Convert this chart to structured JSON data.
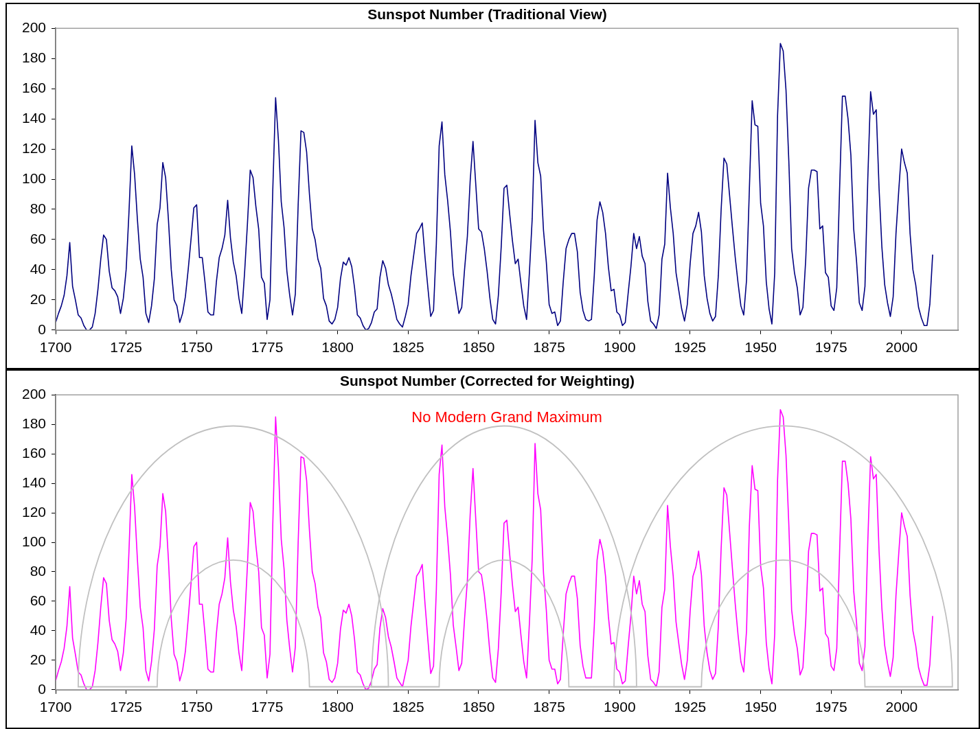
{
  "chart_data": [
    {
      "type": "line",
      "title": "Sunspot Number (Traditional View)",
      "color": "#000080",
      "xlim": [
        1700,
        2020
      ],
      "xticks": [
        1700,
        1725,
        1750,
        1775,
        1800,
        1825,
        1850,
        1875,
        1900,
        1925,
        1950,
        1975,
        2000
      ],
      "ylim": [
        0,
        200
      ],
      "yticks": [
        0,
        20,
        40,
        60,
        80,
        100,
        120,
        140,
        160,
        180,
        200
      ],
      "x": [
        1700,
        1701,
        1702,
        1703,
        1704,
        1705,
        1706,
        1707,
        1708,
        1709,
        1710,
        1711,
        1712,
        1713,
        1714,
        1715,
        1716,
        1717,
        1718,
        1719,
        1720,
        1721,
        1722,
        1723,
        1724,
        1725,
        1726,
        1727,
        1728,
        1729,
        1730,
        1731,
        1732,
        1733,
        1734,
        1735,
        1736,
        1737,
        1738,
        1739,
        1740,
        1741,
        1742,
        1743,
        1744,
        1745,
        1746,
        1747,
        1748,
        1749,
        1750,
        1751,
        1752,
        1753,
        1754,
        1755,
        1756,
        1757,
        1758,
        1759,
        1760,
        1761,
        1762,
        1763,
        1764,
        1765,
        1766,
        1767,
        1768,
        1769,
        1770,
        1771,
        1772,
        1773,
        1774,
        1775,
        1776,
        1777,
        1778,
        1779,
        1780,
        1781,
        1782,
        1783,
        1784,
        1785,
        1786,
        1787,
        1788,
        1789,
        1790,
        1791,
        1792,
        1793,
        1794,
        1795,
        1796,
        1797,
        1798,
        1799,
        1800,
        1801,
        1802,
        1803,
        1804,
        1805,
        1806,
        1807,
        1808,
        1809,
        1810,
        1811,
        1812,
        1813,
        1814,
        1815,
        1816,
        1817,
        1818,
        1819,
        1820,
        1821,
        1822,
        1823,
        1824,
        1825,
        1826,
        1827,
        1828,
        1829,
        1830,
        1831,
        1832,
        1833,
        1834,
        1835,
        1836,
        1837,
        1838,
        1839,
        1840,
        1841,
        1842,
        1843,
        1844,
        1845,
        1846,
        1847,
        1848,
        1849,
        1850,
        1851,
        1852,
        1853,
        1854,
        1855,
        1856,
        1857,
        1858,
        1859,
        1860,
        1861,
        1862,
        1863,
        1864,
        1865,
        1866,
        1867,
        1868,
        1869,
        1870,
        1871,
        1872,
        1873,
        1874,
        1875,
        1876,
        1877,
        1878,
        1879,
        1880,
        1881,
        1882,
        1883,
        1884,
        1885,
        1886,
        1887,
        1888,
        1889,
        1890,
        1891,
        1892,
        1893,
        1894,
        1895,
        1896,
        1897,
        1898,
        1899,
        1900,
        1901,
        1902,
        1903,
        1904,
        1905,
        1906,
        1907,
        1908,
        1909,
        1910,
        1911,
        1912,
        1913,
        1914,
        1915,
        1916,
        1917,
        1918,
        1919,
        1920,
        1921,
        1922,
        1923,
        1924,
        1925,
        1926,
        1927,
        1928,
        1929,
        1930,
        1931,
        1932,
        1933,
        1934,
        1935,
        1936,
        1937,
        1938,
        1939,
        1940,
        1941,
        1942,
        1943,
        1944,
        1945,
        1946,
        1947,
        1948,
        1949,
        1950,
        1951,
        1952,
        1953,
        1954,
        1955,
        1956,
        1957,
        1958,
        1959,
        1960,
        1961,
        1962,
        1963,
        1964,
        1965,
        1966,
        1967,
        1968,
        1969,
        1970,
        1971,
        1972,
        1973,
        1974,
        1975,
        1976,
        1977,
        1978,
        1979,
        1980,
        1981,
        1982,
        1983,
        1984,
        1985,
        1986,
        1987,
        1988,
        1989,
        1990,
        1991,
        1992,
        1993,
        1994,
        1995,
        1996,
        1997,
        1998,
        1999,
        2000,
        2001,
        2002,
        2003,
        2004,
        2005,
        2006,
        2007,
        2008,
        2009,
        2010,
        2011
      ],
      "values": [
        5,
        11,
        16,
        23,
        36,
        58,
        29,
        20,
        10,
        8,
        3,
        0,
        0,
        2,
        11,
        27,
        47,
        63,
        60,
        39,
        28,
        26,
        22,
        11,
        21,
        40,
        78,
        122,
        103,
        73,
        47,
        35,
        11,
        5,
        16,
        34,
        70,
        81,
        111,
        101,
        73,
        40,
        20,
        16,
        5,
        11,
        22,
        40,
        60,
        81,
        83,
        48,
        48,
        31,
        12,
        10,
        10,
        32,
        48,
        54,
        63,
        86,
        61,
        45,
        36,
        21,
        11,
        38,
        70,
        106,
        101,
        82,
        67,
        35,
        31,
        7,
        20,
        93,
        154,
        126,
        85,
        68,
        39,
        23,
        10,
        24,
        83,
        132,
        131,
        118,
        90,
        67,
        60,
        47,
        41,
        21,
        16,
        6,
        4,
        7,
        15,
        34,
        45,
        43,
        48,
        42,
        28,
        10,
        8,
        3,
        0,
        1,
        5,
        12,
        14,
        35,
        46,
        41,
        30,
        24,
        16,
        7,
        4,
        2,
        9,
        17,
        36,
        50,
        64,
        67,
        71,
        48,
        28,
        9,
        13,
        57,
        122,
        138,
        103,
        86,
        65,
        37,
        24,
        11,
        15,
        40,
        62,
        99,
        125,
        96,
        67,
        65,
        54,
        39,
        21,
        7,
        4,
        23,
        55,
        94,
        96,
        77,
        59,
        44,
        47,
        31,
        16,
        7,
        38,
        74,
        139,
        111,
        102,
        66,
        45,
        17,
        11,
        12,
        3,
        6,
        32,
        54,
        60,
        64,
        64,
        52,
        25,
        13,
        7,
        6,
        7,
        36,
        73,
        85,
        78,
        64,
        42,
        26,
        27,
        12,
        10,
        3,
        5,
        24,
        42,
        64,
        54,
        62,
        49,
        44,
        19,
        6,
        4,
        1,
        10,
        47,
        57,
        104,
        81,
        64,
        38,
        26,
        14,
        6,
        17,
        44,
        64,
        69,
        78,
        65,
        36,
        21,
        11,
        6,
        9,
        36,
        80,
        114,
        110,
        89,
        68,
        48,
        31,
        16,
        10,
        33,
        93,
        152,
        136,
        135,
        84,
        69,
        32,
        14,
        4,
        38,
        142,
        190,
        185,
        159,
        112,
        54,
        38,
        28,
        10,
        15,
        47,
        94,
        106,
        106,
        105,
        67,
        69,
        38,
        35,
        16,
        13,
        28,
        93,
        155,
        155,
        140,
        116,
        67,
        46,
        18,
        13,
        29,
        100,
        158,
        143,
        146,
        94,
        55,
        30,
        18,
        9,
        22,
        64,
        93,
        120,
        111,
        104,
        64,
        40,
        30,
        15,
        8,
        3,
        3,
        17,
        50
      ]
    },
    {
      "type": "line",
      "title": "Sunspot Number (Corrected for Weighting)",
      "color": "#ff00ff",
      "annotations": [
        "No Modern Grand Maximum"
      ],
      "xlim": [
        1700,
        2020
      ],
      "xticks": [
        1700,
        1725,
        1750,
        1775,
        1800,
        1825,
        1850,
        1875,
        1900,
        1925,
        1950,
        1975,
        2000
      ],
      "ylim": [
        0,
        200
      ],
      "yticks": [
        0,
        20,
        40,
        60,
        80,
        100,
        120,
        140,
        160,
        180,
        200
      ],
      "x": [
        1700,
        1701,
        1702,
        1703,
        1704,
        1705,
        1706,
        1707,
        1708,
        1709,
        1710,
        1711,
        1712,
        1713,
        1714,
        1715,
        1716,
        1717,
        1718,
        1719,
        1720,
        1721,
        1722,
        1723,
        1724,
        1725,
        1726,
        1727,
        1728,
        1729,
        1730,
        1731,
        1732,
        1733,
        1734,
        1735,
        1736,
        1737,
        1738,
        1739,
        1740,
        1741,
        1742,
        1743,
        1744,
        1745,
        1746,
        1747,
        1748,
        1749,
        1750,
        1751,
        1752,
        1753,
        1754,
        1755,
        1756,
        1757,
        1758,
        1759,
        1760,
        1761,
        1762,
        1763,
        1764,
        1765,
        1766,
        1767,
        1768,
        1769,
        1770,
        1771,
        1772,
        1773,
        1774,
        1775,
        1776,
        1777,
        1778,
        1779,
        1780,
        1781,
        1782,
        1783,
        1784,
        1785,
        1786,
        1787,
        1788,
        1789,
        1790,
        1791,
        1792,
        1793,
        1794,
        1795,
        1796,
        1797,
        1798,
        1799,
        1800,
        1801,
        1802,
        1803,
        1804,
        1805,
        1806,
        1807,
        1808,
        1809,
        1810,
        1811,
        1812,
        1813,
        1814,
        1815,
        1816,
        1817,
        1818,
        1819,
        1820,
        1821,
        1822,
        1823,
        1824,
        1825,
        1826,
        1827,
        1828,
        1829,
        1830,
        1831,
        1832,
        1833,
        1834,
        1835,
        1836,
        1837,
        1838,
        1839,
        1840,
        1841,
        1842,
        1843,
        1844,
        1845,
        1846,
        1847,
        1848,
        1849,
        1850,
        1851,
        1852,
        1853,
        1854,
        1855,
        1856,
        1857,
        1858,
        1859,
        1860,
        1861,
        1862,
        1863,
        1864,
        1865,
        1866,
        1867,
        1868,
        1869,
        1870,
        1871,
        1872,
        1873,
        1874,
        1875,
        1876,
        1877,
        1878,
        1879,
        1880,
        1881,
        1882,
        1883,
        1884,
        1885,
        1886,
        1887,
        1888,
        1889,
        1890,
        1891,
        1892,
        1893,
        1894,
        1895,
        1896,
        1897,
        1898,
        1899,
        1900,
        1901,
        1902,
        1903,
        1904,
        1905,
        1906,
        1907,
        1908,
        1909,
        1910,
        1911,
        1912,
        1913,
        1914,
        1915,
        1916,
        1917,
        1918,
        1919,
        1920,
        1921,
        1922,
        1923,
        1924,
        1925,
        1926,
        1927,
        1928,
        1929,
        1930,
        1931,
        1932,
        1933,
        1934,
        1935,
        1936,
        1937,
        1938,
        1939,
        1940,
        1941,
        1942,
        1943,
        1944,
        1945,
        1946,
        1947,
        1948,
        1949,
        1950,
        1951,
        1952,
        1953,
        1954,
        1955,
        1956,
        1957,
        1958,
        1959,
        1960,
        1961,
        1962,
        1963,
        1964,
        1965,
        1966,
        1967,
        1968,
        1969,
        1970,
        1971,
        1972,
        1973,
        1974,
        1975,
        1976,
        1977,
        1978,
        1979,
        1980,
        1981,
        1982,
        1983,
        1984,
        1985,
        1986,
        1987,
        1988,
        1989,
        1990,
        1991,
        1992,
        1993,
        1994,
        1995,
        1996,
        1997,
        1998,
        1999,
        2000,
        2001,
        2002,
        2003,
        2004,
        2005,
        2006,
        2007,
        2008,
        2009,
        2010,
        2011
      ],
      "values": [
        6,
        13,
        19,
        28,
        43,
        70,
        35,
        24,
        12,
        10,
        4,
        0,
        0,
        2,
        13,
        32,
        56,
        76,
        72,
        47,
        34,
        31,
        26,
        13,
        25,
        48,
        94,
        146,
        124,
        88,
        56,
        42,
        13,
        6,
        19,
        41,
        84,
        97,
        133,
        121,
        88,
        48,
        24,
        19,
        6,
        13,
        26,
        48,
        72,
        97,
        100,
        58,
        58,
        37,
        14,
        12,
        12,
        38,
        58,
        65,
        76,
        103,
        73,
        54,
        43,
        25,
        13,
        46,
        84,
        127,
        121,
        98,
        80,
        42,
        37,
        8,
        24,
        112,
        185,
        151,
        102,
        82,
        47,
        28,
        12,
        29,
        100,
        158,
        157,
        142,
        108,
        80,
        72,
        56,
        49,
        25,
        19,
        7,
        5,
        8,
        18,
        41,
        54,
        52,
        58,
        50,
        34,
        12,
        10,
        4,
        0,
        1,
        6,
        14,
        17,
        42,
        55,
        49,
        36,
        29,
        19,
        8,
        5,
        2,
        11,
        20,
        43,
        60,
        77,
        80,
        85,
        58,
        34,
        11,
        16,
        68,
        146,
        166,
        124,
        103,
        78,
        44,
        29,
        13,
        18,
        48,
        74,
        119,
        150,
        115,
        80,
        78,
        65,
        47,
        25,
        8,
        5,
        28,
        66,
        113,
        115,
        92,
        71,
        53,
        56,
        37,
        19,
        8,
        45,
        89,
        167,
        133,
        122,
        79,
        54,
        20,
        14,
        14,
        4,
        7,
        38,
        65,
        72,
        77,
        77,
        62,
        30,
        16,
        8,
        8,
        8,
        43,
        88,
        102,
        94,
        77,
        50,
        31,
        32,
        14,
        12,
        4,
        6,
        29,
        50,
        77,
        65,
        74,
        58,
        53,
        23,
        7,
        5,
        2,
        12,
        56,
        68,
        125,
        97,
        77,
        46,
        31,
        17,
        7,
        20,
        53,
        77,
        83,
        94,
        78,
        43,
        25,
        13,
        7,
        11,
        43,
        96,
        137,
        132,
        107,
        82,
        58,
        37,
        19,
        12,
        40,
        111,
        152,
        136,
        135,
        84,
        69,
        32,
        14,
        4,
        38,
        142,
        190,
        185,
        159,
        112,
        54,
        38,
        28,
        10,
        15,
        47,
        94,
        106,
        106,
        105,
        67,
        69,
        38,
        35,
        16,
        13,
        28,
        93,
        155,
        155,
        140,
        116,
        67,
        46,
        18,
        13,
        29,
        100,
        158,
        143,
        146,
        94,
        55,
        30,
        18,
        9,
        22,
        64,
        93,
        120,
        111,
        104,
        64,
        40,
        30,
        15,
        8,
        3,
        3,
        17,
        50
      ]
    }
  ]
}
